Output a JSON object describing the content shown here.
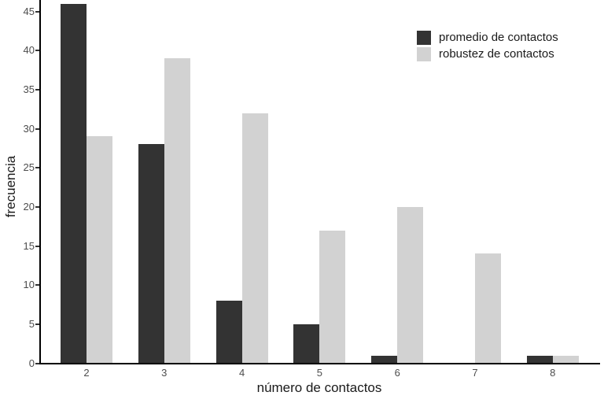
{
  "chart_data": {
    "type": "bar",
    "title": "",
    "categories": [
      "2",
      "3",
      "4",
      "5",
      "6",
      "7",
      "8"
    ],
    "series": [
      {
        "name": "promedio de contactos",
        "color": "#333333",
        "values": [
          46,
          28,
          8,
          5,
          1,
          0,
          1
        ]
      },
      {
        "name": "robustez de contactos",
        "color": "#d2d2d2",
        "values": [
          29,
          39,
          32,
          17,
          20,
          14,
          1
        ]
      }
    ],
    "xlabel": "número de contactos",
    "ylabel": "frecuencia",
    "ylim": [
      0,
      46.5
    ],
    "yticks": [
      0,
      5,
      10,
      15,
      20,
      25,
      30,
      35,
      40,
      45
    ],
    "grid": false,
    "legend_position": "top-right",
    "axis_color": "#000000",
    "tick_label_color": "#4d4d4d",
    "axis_title_color": "#1a1a1a"
  }
}
